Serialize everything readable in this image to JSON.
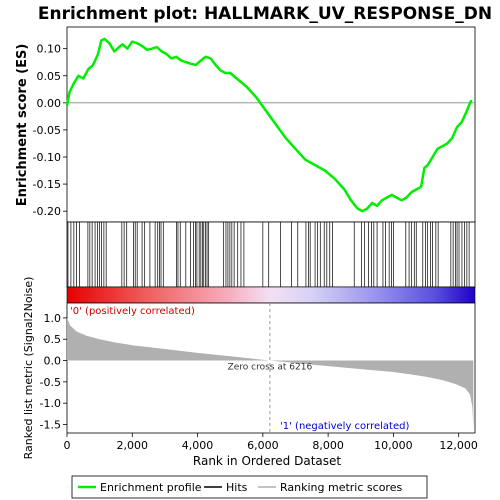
{
  "chart_data": {
    "type": "line",
    "title": "Enrichment plot: HALLMARK_UV_RESPONSE_DN",
    "xlabel": "Rank in Ordered Dataset",
    "x_ticks": [
      0,
      2000,
      4000,
      6000,
      8000,
      10000,
      12000
    ],
    "x_tick_labels": [
      "0",
      "2,000",
      "4,000",
      "6,000",
      "8,000",
      "10,000",
      "12,000"
    ],
    "xlim": [
      0,
      12500
    ],
    "x_max_rank": 12450,
    "es_panel": {
      "ylabel": "Enrichment score (ES)",
      "ylim": [
        -0.22,
        0.14
      ],
      "y_ticks": [
        0.1,
        0.05,
        0.0,
        -0.05,
        -0.1,
        -0.15,
        -0.2
      ],
      "y_tick_labels": [
        "0.10",
        "0.05",
        "0.00",
        "-0.05",
        "-0.10",
        "-0.15",
        "-0.20"
      ],
      "series": [
        {
          "name": "Enrichment profile",
          "color": "#00ee00",
          "x": [
            0,
            80,
            200,
            350,
            500,
            650,
            800,
            950,
            1050,
            1150,
            1300,
            1450,
            1600,
            1700,
            1850,
            2000,
            2150,
            2300,
            2450,
            2600,
            2750,
            2900,
            3050,
            3200,
            3350,
            3500,
            3650,
            3800,
            3950,
            4100,
            4250,
            4400,
            4550,
            4700,
            4850,
            5000,
            5200,
            5500,
            5800,
            6100,
            6400,
            6700,
            7000,
            7300,
            7600,
            7900,
            8200,
            8500,
            8700,
            8900,
            9050,
            9200,
            9350,
            9500,
            9650,
            9800,
            9950,
            10100,
            10250,
            10400,
            10550,
            10700,
            10850,
            10950,
            11050,
            11200,
            11350,
            11500,
            11650,
            11800,
            11950,
            12100,
            12250,
            12350,
            12400
          ],
          "y": [
            -0.005,
            0.02,
            0.035,
            0.05,
            0.045,
            0.062,
            0.07,
            0.09,
            0.115,
            0.118,
            0.11,
            0.095,
            0.103,
            0.108,
            0.1,
            0.113,
            0.11,
            0.105,
            0.098,
            0.1,
            0.103,
            0.095,
            0.09,
            0.082,
            0.085,
            0.078,
            0.075,
            0.072,
            0.07,
            0.078,
            0.085,
            0.082,
            0.07,
            0.06,
            0.055,
            0.055,
            0.045,
            0.03,
            0.01,
            -0.015,
            -0.04,
            -0.065,
            -0.085,
            -0.105,
            -0.115,
            -0.125,
            -0.14,
            -0.16,
            -0.18,
            -0.195,
            -0.2,
            -0.195,
            -0.185,
            -0.19,
            -0.18,
            -0.175,
            -0.17,
            -0.175,
            -0.18,
            -0.175,
            -0.165,
            -0.16,
            -0.155,
            -0.12,
            -0.115,
            -0.1,
            -0.085,
            -0.08,
            -0.075,
            -0.065,
            -0.045,
            -0.035,
            -0.015,
            0.0,
            0.005
          ]
        }
      ]
    },
    "hits_panel": {
      "hit_ranks": [
        30,
        120,
        210,
        290,
        380,
        640,
        700,
        770,
        860,
        930,
        1000,
        1060,
        1130,
        1200,
        1680,
        1750,
        1830,
        2040,
        2090,
        2150,
        2300,
        2380,
        2540,
        2700,
        2780,
        2830,
        2880,
        2950,
        3350,
        3400,
        3470,
        3640,
        3780,
        3880,
        3940,
        3980,
        4050,
        4100,
        4150,
        4190,
        4240,
        4290,
        4330,
        4800,
        4870,
        4930,
        4990,
        5050,
        5120,
        5230,
        5330,
        5420,
        6000,
        6180,
        6540,
        6880,
        7070,
        7320,
        7400,
        7450,
        7600,
        7680,
        7760,
        7880,
        7960,
        8050,
        8130,
        8800,
        9020,
        9120,
        9240,
        9330,
        9400,
        9500,
        9680,
        9760,
        9870,
        9940,
        10000,
        10380,
        10480,
        10560,
        10640,
        10700,
        10900,
        10980,
        11050,
        11140,
        11200,
        11300,
        11370,
        11760,
        11830,
        11900,
        11950,
        12010,
        12100,
        12180,
        12250,
        12320
      ]
    },
    "rank_panel": {
      "ylabel": "Ranked list metric (Signal2Noise)",
      "ylim": [
        -1.7,
        1.35
      ],
      "y_ticks": [
        1.0,
        0.5,
        0.0,
        -0.5,
        -1.0,
        -1.5
      ],
      "y_tick_labels": [
        "1.0",
        "0.5",
        "0.0",
        "-0.5",
        "-1.0",
        "-1.5"
      ],
      "metric_x": [
        0,
        100,
        300,
        600,
        1000,
        1500,
        2000,
        3000,
        4000,
        5000,
        6216,
        7000,
        8000,
        9000,
        10000,
        10500,
        11000,
        11500,
        11900,
        12200,
        12350,
        12420,
        12450
      ],
      "metric_y": [
        1.0,
        0.82,
        0.68,
        0.58,
        0.5,
        0.42,
        0.36,
        0.27,
        0.18,
        0.1,
        0.0,
        -0.06,
        -0.13,
        -0.2,
        -0.27,
        -0.32,
        -0.38,
        -0.46,
        -0.55,
        -0.65,
        -0.8,
        -1.1,
        -1.6
      ],
      "fill_color": "#b0b0b0",
      "zero_cross_rank": 6216,
      "zero_cross_label": "Zero cross at 6216",
      "pos_label": "'0' (positively correlated)",
      "neg_label": "'1' (negatively correlated)",
      "pos_label_color": "#cc0000",
      "neg_label_color": "#0000cc"
    },
    "legend": {
      "placement": "bottom",
      "items": [
        {
          "label": "Enrichment profile",
          "color": "#00ee00"
        },
        {
          "label": "Hits",
          "color": "#000000"
        },
        {
          "label": "Ranking metric scores",
          "color": "#b0b0b0"
        }
      ]
    }
  }
}
